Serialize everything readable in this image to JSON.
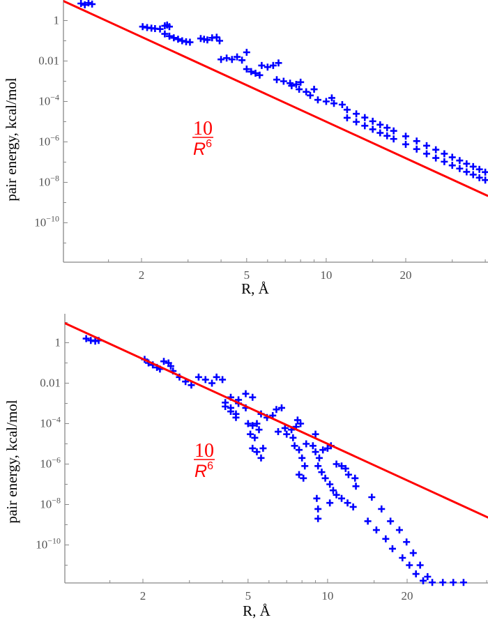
{
  "colors": {
    "points": "#0000ff",
    "reference_line": "#ff0000",
    "axis": "#888888",
    "tick_text": "#555555"
  },
  "chart_data": [
    {
      "type": "scatter",
      "scale": {
        "x": "log",
        "y": "log"
      },
      "xlabel": "R, Å",
      "ylabel": "pair energy, kcal/mol",
      "xlim": [
        1.01,
        41
      ],
      "ylim": [
        1.1e-12,
        10.5
      ],
      "grid": false,
      "marker": "plus",
      "x_ticks": [
        {
          "value": 2,
          "label": "2"
        },
        {
          "value": 5,
          "label": "5"
        },
        {
          "value": 10,
          "label": "10"
        },
        {
          "value": 20,
          "label": "20"
        }
      ],
      "x_minor_ticks": [
        1.5,
        3,
        4,
        6,
        7,
        8,
        9,
        15,
        30,
        40
      ],
      "y_ticks": [
        {
          "value": 1,
          "base": "1",
          "exp": ""
        },
        {
          "value": 0.01,
          "base": "0.01",
          "exp": ""
        },
        {
          "value": 0.0001,
          "base": "10",
          "exp": "−4"
        },
        {
          "value": 1e-06,
          "base": "10",
          "exp": "−6"
        },
        {
          "value": 1e-08,
          "base": "10",
          "exp": "−8"
        },
        {
          "value": 1e-10,
          "base": "10",
          "exp": "−10"
        }
      ],
      "y_minor_ticks": [
        10,
        0.1,
        0.001,
        1e-05,
        1e-07,
        1e-09,
        1e-11
      ],
      "reference_line": {
        "coefficient": 10,
        "power": -6,
        "label": {
          "numerator": "10",
          "denominator": "R",
          "exponent": "6"
        }
      },
      "points": [
        [
          1.18,
          7
        ],
        [
          1.22,
          6
        ],
        [
          1.26,
          7.5
        ],
        [
          1.3,
          6.5
        ],
        [
          2.02,
          0.5
        ],
        [
          2.1,
          0.45
        ],
        [
          2.18,
          0.42
        ],
        [
          2.25,
          0.4
        ],
        [
          2.35,
          0.38
        ],
        [
          2.45,
          0.55
        ],
        [
          2.55,
          0.5
        ],
        [
          2.5,
          0.6
        ],
        [
          2.45,
          0.22
        ],
        [
          2.55,
          0.17
        ],
        [
          2.65,
          0.14
        ],
        [
          2.75,
          0.12
        ],
        [
          2.85,
          0.1
        ],
        [
          2.95,
          0.09
        ],
        [
          3.05,
          0.085
        ],
        [
          3.35,
          0.13
        ],
        [
          3.45,
          0.12
        ],
        [
          3.55,
          0.11
        ],
        [
          3.7,
          0.14
        ],
        [
          3.85,
          0.15
        ],
        [
          3.95,
          0.1
        ],
        [
          4.0,
          0.012
        ],
        [
          4.2,
          0.014
        ],
        [
          4.4,
          0.012
        ],
        [
          4.6,
          0.016
        ],
        [
          4.8,
          0.011
        ],
        [
          5.0,
          0.027
        ],
        [
          5.0,
          0.004
        ],
        [
          5.2,
          0.003
        ],
        [
          5.4,
          0.0025
        ],
        [
          5.6,
          0.002
        ],
        [
          5.7,
          0.006
        ],
        [
          6.0,
          0.005
        ],
        [
          6.3,
          0.006
        ],
        [
          6.6,
          0.008
        ],
        [
          6.5,
          0.0012
        ],
        [
          6.9,
          0.001
        ],
        [
          7.3,
          0.0008
        ],
        [
          7.7,
          0.0007
        ],
        [
          8.0,
          0.0009
        ],
        [
          7.4,
          0.0006
        ],
        [
          7.9,
          0.0004
        ],
        [
          8.4,
          0.0003
        ],
        [
          9.0,
          0.0004
        ],
        [
          8.7,
          0.0002
        ],
        [
          9.3,
          0.00012
        ],
        [
          10,
          0.0001
        ],
        [
          10.7,
          8e-05
        ],
        [
          11.5,
          7e-05
        ],
        [
          10.5,
          0.00015
        ],
        [
          12,
          3.9e-05
        ],
        [
          12,
          1.55e-05
        ],
        [
          13,
          2.45e-05
        ],
        [
          13,
          9.8e-06
        ],
        [
          14,
          1.6e-05
        ],
        [
          14,
          6.3e-06
        ],
        [
          15,
          1.05e-05
        ],
        [
          15,
          4.2e-06
        ],
        [
          16,
          7.1e-06
        ],
        [
          16,
          2.8e-06
        ],
        [
          17,
          5e-06
        ],
        [
          17,
          2e-06
        ],
        [
          18,
          3.5e-06
        ],
        [
          18,
          1.4e-06
        ],
        [
          20,
          1.9e-06
        ],
        [
          20,
          7.6e-07
        ],
        [
          22,
          1.1e-06
        ],
        [
          22,
          4.4e-07
        ],
        [
          24,
          6.5e-07
        ],
        [
          24,
          2.6e-07
        ],
        [
          26,
          4.1e-07
        ],
        [
          26,
          1.6e-07
        ],
        [
          28,
          2.6e-07
        ],
        [
          28,
          1.05e-07
        ],
        [
          30,
          1.74e-07
        ],
        [
          30,
          6.9e-08
        ],
        [
          32,
          1.2e-07
        ],
        [
          32,
          4.8e-08
        ],
        [
          34,
          8.3e-08
        ],
        [
          34,
          3.3e-08
        ],
        [
          36,
          6e-08
        ],
        [
          36,
          2.4e-08
        ],
        [
          38,
          4.4e-08
        ],
        [
          38,
          1.7e-08
        ],
        [
          40,
          3.2e-08
        ],
        [
          40,
          1.3e-08
        ]
      ]
    },
    {
      "type": "scatter",
      "scale": {
        "x": "log",
        "y": "log"
      },
      "xlabel": "R, Å",
      "ylabel": "pair energy, kcal/mol",
      "xlim": [
        1.01,
        41
      ],
      "ylim": [
        1.3e-12,
        27
      ],
      "grid": false,
      "marker": "plus",
      "x_ticks": [
        {
          "value": 2,
          "label": "2"
        },
        {
          "value": 5,
          "label": "5"
        },
        {
          "value": 10,
          "label": "10"
        },
        {
          "value": 20,
          "label": "20"
        }
      ],
      "x_minor_ticks": [
        1.5,
        3,
        4,
        6,
        7,
        8,
        9,
        15,
        30,
        40
      ],
      "y_ticks": [
        {
          "value": 1,
          "base": "1",
          "exp": ""
        },
        {
          "value": 0.01,
          "base": "0.01",
          "exp": ""
        },
        {
          "value": 0.0001,
          "base": "10",
          "exp": "−4"
        },
        {
          "value": 1e-06,
          "base": "10",
          "exp": "−6"
        },
        {
          "value": 1e-08,
          "base": "10",
          "exp": "−8"
        },
        {
          "value": 1e-10,
          "base": "10",
          "exp": "−10"
        }
      ],
      "y_minor_ticks": [
        10,
        0.1,
        0.001,
        1e-05,
        1e-07,
        1e-09,
        1e-11
      ],
      "reference_line": {
        "coefficient": 10,
        "power": -6,
        "label": {
          "numerator": "10",
          "denominator": "R",
          "exponent": "6"
        }
      },
      "points": [
        [
          1.22,
          1.6
        ],
        [
          1.27,
          1.3
        ],
        [
          1.32,
          1.2
        ],
        [
          1.36,
          1.3
        ],
        [
          2.03,
          0.15
        ],
        [
          2.1,
          0.1
        ],
        [
          2.18,
          0.08
        ],
        [
          2.26,
          0.06
        ],
        [
          2.32,
          0.05
        ],
        [
          2.4,
          0.12
        ],
        [
          2.5,
          0.1
        ],
        [
          2.55,
          0.07
        ],
        [
          2.6,
          0.04
        ],
        [
          2.75,
          0.02
        ],
        [
          2.9,
          0.012
        ],
        [
          3.05,
          0.008
        ],
        [
          3.25,
          0.02
        ],
        [
          3.45,
          0.015
        ],
        [
          3.65,
          0.01
        ],
        [
          3.8,
          0.02
        ],
        [
          4.0,
          0.015
        ],
        [
          4.1,
          0.0011
        ],
        [
          4.3,
          0.0006
        ],
        [
          4.5,
          0.0003
        ],
        [
          4.3,
          0.002
        ],
        [
          4.6,
          0.0015
        ],
        [
          4.6,
          0.001
        ],
        [
          4.9,
          0.0006
        ],
        [
          4.1,
          0.0007
        ],
        [
          4.3,
          0.0004
        ],
        [
          4.5,
          0.0002
        ],
        [
          4.9,
          0.003
        ],
        [
          5.2,
          0.002
        ],
        [
          5.0,
          0.0001
        ],
        [
          5.2,
          8e-05
        ],
        [
          5.4,
          0.0001
        ],
        [
          5.1,
          3e-05
        ],
        [
          5.3,
          2e-05
        ],
        [
          5.5,
          5e-05
        ],
        [
          5.2,
          6e-06
        ],
        [
          5.4,
          4e-06
        ],
        [
          5.6,
          2e-06
        ],
        [
          5.7,
          6e-06
        ],
        [
          5.6,
          0.0003
        ],
        [
          5.9,
          0.0002
        ],
        [
          6.2,
          0.00025
        ],
        [
          6.4,
          0.0005
        ],
        [
          6.7,
          0.0006
        ],
        [
          6.5,
          4e-05
        ],
        [
          6.9,
          6e-05
        ],
        [
          7.3,
          5e-05
        ],
        [
          7.6,
          7e-05
        ],
        [
          7.0,
          3e-05
        ],
        [
          7.4,
          2e-05
        ],
        [
          7.7,
          0.00015
        ],
        [
          7.9,
          0.0001
        ],
        [
          7.5,
          8e-06
        ],
        [
          7.8,
          5e-06
        ],
        [
          8.0,
          2e-06
        ],
        [
          8.2,
          8e-07
        ],
        [
          7.8,
          3e-07
        ],
        [
          8.1,
          2e-07
        ],
        [
          8.3,
          1e-05
        ],
        [
          8.8,
          8e-06
        ],
        [
          9.0,
          3e-05
        ],
        [
          9.0,
          4e-06
        ],
        [
          9.3,
          2e-06
        ],
        [
          9.6,
          5e-06
        ],
        [
          10,
          6e-06
        ],
        [
          10.3,
          8e-06
        ],
        [
          9.2,
          8e-07
        ],
        [
          9.5,
          4e-07
        ],
        [
          9.1,
          2e-08
        ],
        [
          9.2,
          6e-09
        ],
        [
          9.2,
          2e-09
        ],
        [
          9.8,
          2e-07
        ],
        [
          10.2,
          1e-07
        ],
        [
          10.5,
          5e-08
        ],
        [
          10.8,
          3e-08
        ],
        [
          10.2,
          1.2e-08
        ],
        [
          10.8,
          1e-06
        ],
        [
          11.3,
          8e-07
        ],
        [
          11.7,
          6e-07
        ],
        [
          11.3,
          2e-08
        ],
        [
          11.9,
          1.2e-08
        ],
        [
          12.0,
          3e-07
        ],
        [
          12.7,
          2e-07
        ],
        [
          12.8,
          8e-08
        ],
        [
          14.7,
          2.3e-08
        ],
        [
          16.0,
          6e-09
        ],
        [
          17.3,
          1.5e-09
        ],
        [
          18.7,
          5.5e-10
        ],
        [
          19.9,
          1.4e-10
        ],
        [
          21.1,
          4e-11
        ],
        [
          22.4,
          1e-11
        ],
        [
          23.9,
          2.7e-12
        ],
        [
          12.5,
          7.6e-09
        ],
        [
          14.2,
          1.5e-09
        ],
        [
          15.3,
          5.5e-10
        ],
        [
          16.6,
          2e-10
        ],
        [
          17.6,
          6.5e-11
        ],
        [
          19.2,
          2.3e-11
        ],
        [
          20.4,
          1e-11
        ],
        [
          21.6,
          3.7e-12
        ],
        [
          23.0,
          1.7e-12
        ],
        [
          24.9,
          1.4e-12
        ],
        [
          27.3,
          1.4e-12
        ],
        [
          29.9,
          1.4e-12
        ],
        [
          32.7,
          1.4e-12
        ]
      ]
    }
  ]
}
